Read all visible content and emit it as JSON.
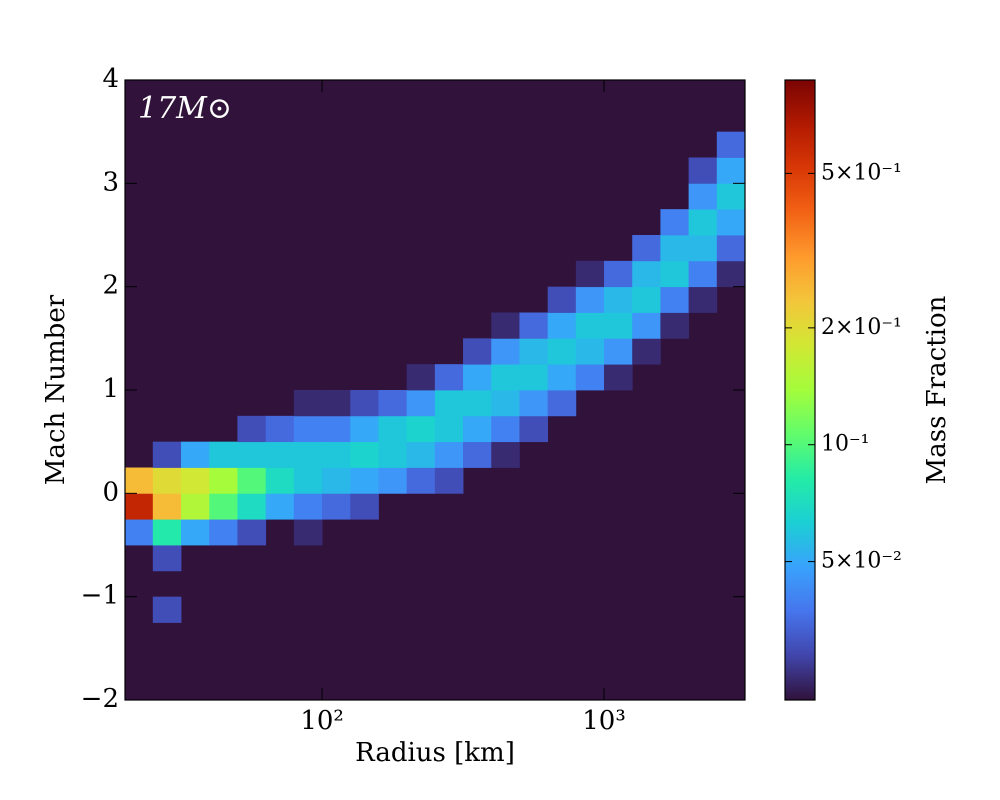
{
  "chart_data": {
    "type": "heatmap",
    "annotation": "17M⊙",
    "xlabel": "Radius [km]",
    "ylabel": "Mach Number",
    "colorbar_label": "Mass Fraction",
    "xscale": "log",
    "xlim": [
      20,
      3162.3
    ],
    "xticks": [
      {
        "value": 100,
        "label": "10²"
      },
      {
        "value": 1000,
        "label": "10³"
      }
    ],
    "ylim": [
      -2,
      4
    ],
    "yticks": [
      {
        "value": -2,
        "label": "−2"
      },
      {
        "value": -1,
        "label": "−1"
      },
      0,
      1,
      2,
      3,
      4
    ],
    "clim": [
      0.022,
      0.87
    ],
    "cticks": [
      {
        "value": 0.5,
        "label": "5×10⁻¹"
      },
      {
        "value": 0.2,
        "label": "2×10⁻¹"
      },
      {
        "value": 0.1,
        "label": "10⁻¹"
      },
      {
        "value": 0.05,
        "label": "5×10⁻²"
      }
    ],
    "colormap": [
      "#30123b",
      "#4145ab",
      "#4675ed",
      "#39a2fc",
      "#1bcfd4",
      "#24eca6",
      "#61fc6c",
      "#a4fc3b",
      "#d1e834",
      "#f3c63a",
      "#fe9b2d",
      "#f36315",
      "#d93806",
      "#b11901",
      "#7a0403"
    ],
    "x_bins": [
      20,
      25.1,
      31.6,
      39.8,
      50.1,
      63.1,
      79.4,
      100,
      125.9,
      158.5,
      199.5,
      251.2,
      316.2,
      398.1,
      501.2,
      631,
      794.3,
      1000,
      1258.9,
      1584.9,
      1995.3,
      2511.9,
      3162.3
    ],
    "y_bins": [
      -2,
      -1.75,
      -1.5,
      -1.25,
      -1,
      -0.75,
      -0.5,
      -0.25,
      0,
      0.25,
      0.5,
      0.75,
      1,
      1.25,
      1.5,
      1.75,
      2,
      2.25,
      2.5,
      2.75,
      3,
      3.25,
      3.5,
      3.75,
      4
    ],
    "values": [
      [
        null,
        null,
        null,
        null,
        null,
        null,
        0.04,
        0.6,
        0.25,
        null,
        null,
        null,
        null,
        null,
        null,
        null,
        null,
        null,
        null,
        null,
        null,
        null,
        null,
        null
      ],
      [
        null,
        null,
        null,
        0.03,
        null,
        0.03,
        0.08,
        0.25,
        0.2,
        0.03,
        null,
        null,
        null,
        null,
        null,
        null,
        null,
        null,
        null,
        null,
        null,
        null,
        null,
        null
      ],
      [
        null,
        null,
        null,
        null,
        null,
        null,
        0.05,
        0.15,
        0.18,
        0.05,
        null,
        null,
        null,
        null,
        null,
        null,
        null,
        null,
        null,
        null,
        null,
        null,
        null,
        null
      ],
      [
        null,
        null,
        null,
        null,
        null,
        null,
        0.04,
        0.1,
        0.14,
        0.06,
        null,
        null,
        null,
        null,
        null,
        null,
        null,
        null,
        null,
        null,
        null,
        null,
        null,
        null
      ],
      [
        null,
        null,
        null,
        null,
        null,
        null,
        0.03,
        0.07,
        0.1,
        0.06,
        0.03,
        null,
        null,
        null,
        null,
        null,
        null,
        null,
        null,
        null,
        null,
        null,
        null,
        null
      ],
      [
        null,
        null,
        null,
        null,
        null,
        null,
        null,
        0.05,
        0.07,
        0.06,
        0.035,
        null,
        null,
        null,
        null,
        null,
        null,
        null,
        null,
        null,
        null,
        null,
        null,
        null
      ],
      [
        null,
        null,
        null,
        null,
        null,
        null,
        0.025,
        0.04,
        0.06,
        0.06,
        0.04,
        0.025,
        null,
        null,
        null,
        null,
        null,
        null,
        null,
        null,
        null,
        null,
        null,
        null
      ],
      [
        null,
        null,
        null,
        null,
        null,
        null,
        null,
        0.035,
        0.055,
        0.06,
        0.04,
        0.025,
        null,
        null,
        null,
        null,
        null,
        null,
        null,
        null,
        null,
        null,
        null,
        null
      ],
      [
        null,
        null,
        null,
        null,
        null,
        null,
        null,
        0.03,
        0.05,
        0.065,
        0.05,
        0.03,
        null,
        null,
        null,
        null,
        null,
        null,
        null,
        null,
        null,
        null,
        null,
        null
      ],
      [
        null,
        null,
        null,
        null,
        null,
        null,
        null,
        null,
        0.045,
        0.06,
        0.06,
        0.035,
        null,
        null,
        null,
        null,
        null,
        null,
        null,
        null,
        null,
        null,
        null,
        null
      ],
      [
        null,
        null,
        null,
        null,
        null,
        null,
        null,
        null,
        0.035,
        0.055,
        0.065,
        0.045,
        0.025,
        null,
        null,
        null,
        null,
        null,
        null,
        null,
        null,
        null,
        null,
        null
      ],
      [
        null,
        null,
        null,
        null,
        null,
        null,
        null,
        null,
        0.03,
        0.045,
        0.06,
        0.06,
        0.035,
        null,
        null,
        null,
        null,
        null,
        null,
        null,
        null,
        null,
        null,
        null
      ],
      [
        null,
        null,
        null,
        null,
        null,
        null,
        null,
        null,
        null,
        0.035,
        0.05,
        0.06,
        0.05,
        0.03,
        null,
        null,
        null,
        null,
        null,
        null,
        null,
        null,
        null,
        null
      ],
      [
        null,
        null,
        null,
        null,
        null,
        null,
        null,
        null,
        null,
        0.025,
        0.04,
        0.055,
        0.06,
        0.045,
        0.025,
        null,
        null,
        null,
        null,
        null,
        null,
        null,
        null,
        null
      ],
      [
        null,
        null,
        null,
        null,
        null,
        null,
        null,
        null,
        null,
        null,
        0.03,
        0.045,
        0.06,
        0.055,
        0.035,
        null,
        null,
        null,
        null,
        null,
        null,
        null,
        null,
        null
      ],
      [
        null,
        null,
        null,
        null,
        null,
        null,
        null,
        null,
        null,
        null,
        null,
        0.035,
        0.05,
        0.06,
        0.05,
        0.03,
        null,
        null,
        null,
        null,
        null,
        null,
        null,
        null
      ],
      [
        null,
        null,
        null,
        null,
        null,
        null,
        null,
        null,
        null,
        null,
        null,
        null,
        0.04,
        0.055,
        0.06,
        0.045,
        0.025,
        null,
        null,
        null,
        null,
        null,
        null,
        null
      ],
      [
        null,
        null,
        null,
        null,
        null,
        null,
        null,
        null,
        null,
        null,
        null,
        null,
        0.025,
        0.045,
        0.06,
        0.055,
        0.035,
        null,
        null,
        null,
        null,
        null,
        null,
        null
      ],
      [
        null,
        null,
        null,
        null,
        null,
        null,
        null,
        null,
        null,
        null,
        null,
        null,
        null,
        0.025,
        0.045,
        0.06,
        0.055,
        0.035,
        null,
        null,
        null,
        null,
        null,
        null
      ],
      [
        null,
        null,
        null,
        null,
        null,
        null,
        null,
        null,
        null,
        null,
        null,
        null,
        null,
        null,
        0.025,
        0.04,
        0.06,
        0.055,
        0.04,
        null,
        null,
        null,
        null,
        null
      ],
      [
        null,
        null,
        null,
        null,
        null,
        null,
        null,
        null,
        null,
        null,
        null,
        null,
        null,
        null,
        null,
        0.025,
        0.04,
        0.055,
        0.06,
        0.045,
        0.03,
        null,
        null,
        null
      ],
      [
        null,
        null,
        null,
        null,
        null,
        null,
        null,
        null,
        null,
        null,
        null,
        null,
        null,
        null,
        null,
        null,
        0.025,
        0.035,
        0.05,
        0.06,
        0.05,
        0.035,
        null,
        null
      ]
    ]
  }
}
